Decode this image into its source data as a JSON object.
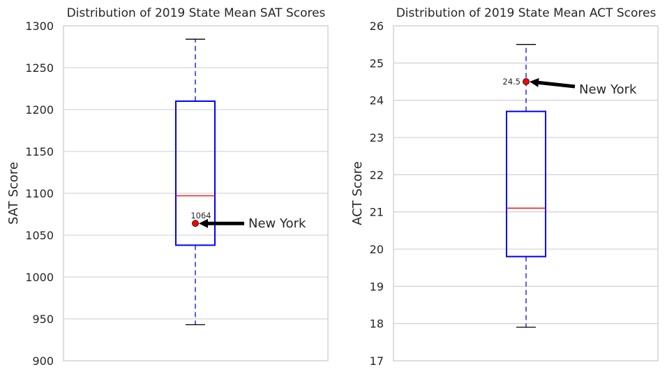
{
  "chart_data": [
    {
      "type": "box",
      "title": "Distribution of 2019 State Mean SAT Scores",
      "ylabel": "SAT Score",
      "ylim": [
        900,
        1300
      ],
      "yticks": [
        900,
        950,
        1000,
        1050,
        1100,
        1150,
        1200,
        1250,
        1300
      ],
      "grid": true,
      "box": {
        "whisker_low": 943,
        "q1": 1038,
        "median": 1097,
        "q3": 1210,
        "whisker_high": 1284
      },
      "highlight": {
        "label": "New York",
        "value": 1064,
        "value_label": "1064"
      },
      "colors": {
        "box": "#0000ff",
        "median": "#ff0000",
        "whisker": "#0000ff",
        "cap": "#000000",
        "point": "#ff0000",
        "grid": "#cccccc"
      }
    },
    {
      "type": "box",
      "title": "Distribution of 2019 State Mean ACT Scores",
      "ylabel": "ACT Score",
      "ylim": [
        17,
        26
      ],
      "yticks": [
        17,
        18,
        19,
        20,
        21,
        22,
        23,
        24,
        25,
        26
      ],
      "grid": true,
      "box": {
        "whisker_low": 17.9,
        "q1": 19.8,
        "median": 21.1,
        "q3": 23.7,
        "whisker_high": 25.5
      },
      "highlight": {
        "label": "New York",
        "value": 24.5,
        "value_label": "24.5"
      },
      "colors": {
        "box": "#0000ff",
        "median": "#ff0000",
        "whisker": "#0000ff",
        "cap": "#000000",
        "point": "#ff0000",
        "grid": "#cccccc"
      }
    }
  ]
}
